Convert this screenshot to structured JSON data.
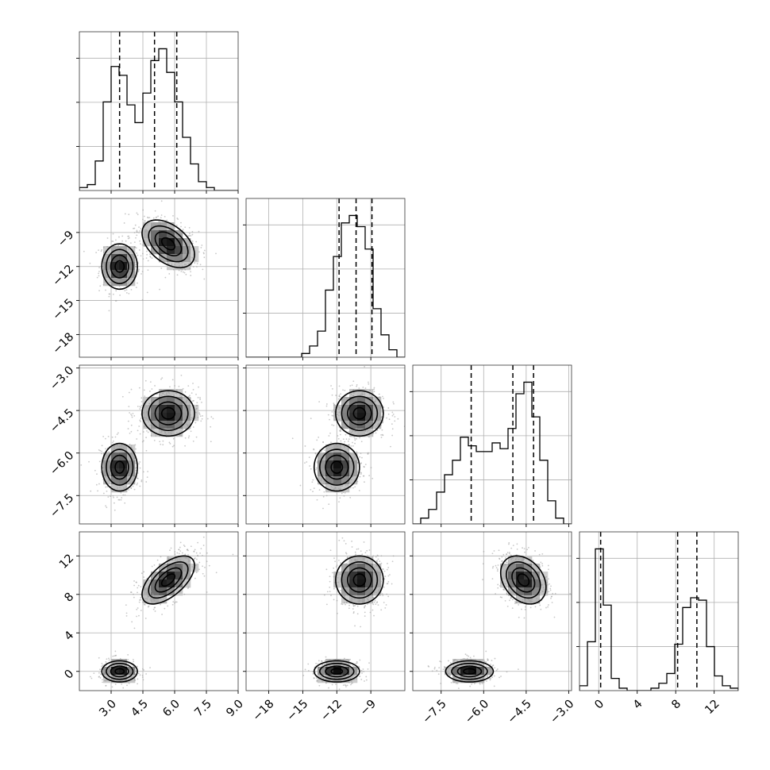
{
  "chart_data": {
    "type": "corner",
    "title": "",
    "params": [
      {
        "name": "",
        "range": [
          1.5,
          9.0
        ],
        "ticks": [
          3.0,
          4.5,
          6.0,
          7.5,
          9.0
        ],
        "tick_labels": [
          "3.0",
          "4.5",
          "6.0",
          "7.5",
          "9.0"
        ],
        "quantiles": [
          3.4,
          5.05,
          6.1
        ],
        "hist": {
          "edges": [
            1.5,
            1.875,
            2.25,
            2.625,
            3.0,
            3.375,
            3.75,
            4.125,
            4.5,
            4.875,
            5.25,
            5.625,
            6.0,
            6.375,
            6.75,
            7.125,
            7.5,
            7.875,
            8.25,
            8.625,
            9.0
          ],
          "counts": [
            1,
            2,
            10,
            30,
            42,
            39,
            29,
            23,
            33,
            44,
            48,
            40,
            30,
            18,
            9,
            3,
            1,
            0,
            0,
            0
          ]
        }
      },
      {
        "name": "",
        "range": [
          -20.0,
          -6.0
        ],
        "ticks": [
          -18,
          -15,
          -12,
          -9
        ],
        "tick_labels": [
          "−18",
          "−15",
          "−12",
          "−9"
        ],
        "quantiles": [
          -11.8,
          -10.3,
          -8.9
        ],
        "hist": {
          "edges": [
            -20.0,
            -19.3,
            -18.6,
            -17.9,
            -17.2,
            -16.5,
            -15.8,
            -15.1,
            -14.4,
            -13.7,
            -13.0,
            -12.3,
            -11.6,
            -10.9,
            -10.2,
            -9.5,
            -8.8,
            -8.1,
            -7.4,
            -6.7,
            -6.0
          ],
          "counts": [
            0,
            0,
            0,
            0,
            0,
            0,
            0,
            1,
            3,
            7,
            18,
            27,
            36,
            38,
            35,
            29,
            13,
            6,
            2,
            0
          ]
        }
      },
      {
        "name": "",
        "range": [
          -8.5,
          -2.9
        ],
        "ticks": [
          -7.5,
          -6.0,
          -4.5,
          -3.0
        ],
        "tick_labels": [
          "−7.5",
          "−6.0",
          "−4.5",
          "−3.0"
        ],
        "quantiles": [
          -6.44,
          -4.97,
          -4.24
        ],
        "hist": {
          "edges": [
            -8.5,
            -8.22,
            -7.94,
            -7.66,
            -7.38,
            -7.1,
            -6.82,
            -6.54,
            -6.26,
            -5.98,
            -5.7,
            -5.42,
            -5.14,
            -4.86,
            -4.58,
            -4.3,
            -4.02,
            -3.74,
            -3.46,
            -3.18,
            -2.9
          ],
          "counts": [
            0,
            2,
            5,
            11,
            17,
            22,
            30,
            27,
            25,
            25,
            28,
            26,
            33,
            45,
            49,
            37,
            22,
            8,
            2,
            0
          ]
        }
      },
      {
        "name": "",
        "range": [
          -2.0,
          14.5
        ],
        "ticks": [
          0,
          4,
          8,
          12
        ],
        "tick_labels": [
          "0",
          "4",
          "8",
          "12"
        ],
        "quantiles": [
          0.2,
          8.2,
          10.2
        ],
        "hist": {
          "edges": [
            -2.0,
            -1.175,
            -0.35,
            0.475,
            1.3,
            2.125,
            2.95,
            3.775,
            4.6,
            5.425,
            6.25,
            7.075,
            7.9,
            8.725,
            9.55,
            10.375,
            11.2,
            12.025,
            12.85,
            13.675,
            14.5
          ],
          "counts": [
            2,
            20,
            58,
            35,
            5,
            1,
            0,
            0,
            0,
            1,
            3,
            7,
            19,
            34,
            38,
            37,
            18,
            6,
            2,
            1
          ]
        }
      }
    ],
    "modes": [
      {
        "weight": 0.38,
        "mean": [
          3.4,
          -12.0,
          -6.5,
          0.0
        ],
        "sd": [
          0.42,
          1.0,
          0.42,
          0.55
        ]
      },
      {
        "weight": 0.62,
        "mean": [
          5.7,
          -10.0,
          -4.6,
          9.5
        ],
        "sd": [
          0.62,
          1.05,
          0.4,
          1.25
        ]
      }
    ],
    "correlations": {
      "0-1": [
        0.0,
        -0.45
      ],
      "0-2": [
        0.0,
        0.0
      ],
      "0-3": [
        0.0,
        0.6
      ],
      "1-2": [
        0.0,
        0.0
      ],
      "1-3": [
        0.0,
        0.0
      ],
      "2-3": [
        0.0,
        -0.3
      ]
    },
    "contour_levels_sigma": [
      0.5,
      1.0,
      1.5,
      2.0
    ],
    "grid": true,
    "legend": "none"
  }
}
